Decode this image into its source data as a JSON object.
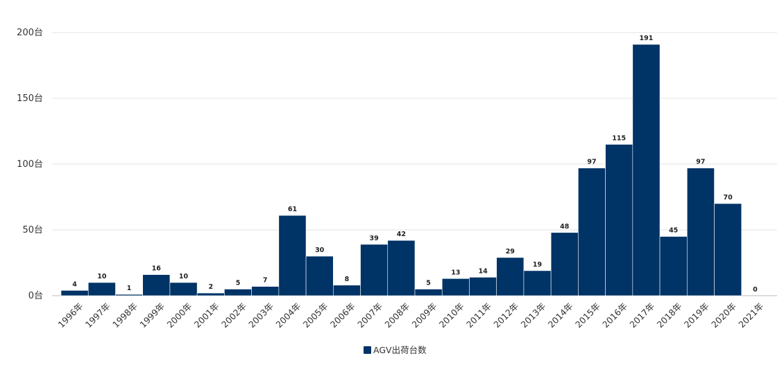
{
  "chart_data": {
    "type": "bar",
    "categories": [
      "1996年",
      "1997年",
      "1998年",
      "1999年",
      "2000年",
      "2001年",
      "2002年",
      "2003年",
      "2004年",
      "2005年",
      "2006年",
      "2007年",
      "2008年",
      "2009年",
      "2010年",
      "2011年",
      "2012年",
      "2013年",
      "2014年",
      "2015年",
      "2016年",
      "2017年",
      "2018年",
      "2019年",
      "2020年",
      "2021年"
    ],
    "series": [
      {
        "name": "AGV出荷台数",
        "color": "#003366",
        "values": [
          4,
          10,
          1,
          16,
          10,
          2,
          5,
          7,
          61,
          30,
          8,
          39,
          42,
          5,
          13,
          14,
          29,
          19,
          48,
          97,
          115,
          191,
          45,
          97,
          70,
          0
        ]
      }
    ],
    "y_tick_labels": [
      "0台",
      "50台",
      "100台",
      "150台",
      "200台"
    ],
    "y_tick_values": [
      0,
      50,
      100,
      150,
      200
    ],
    "ylim": [
      0,
      200
    ],
    "title": "",
    "xlabel": "",
    "ylabel": "",
    "grid": true,
    "legend_position": "bottom-center",
    "data_labels": true
  }
}
